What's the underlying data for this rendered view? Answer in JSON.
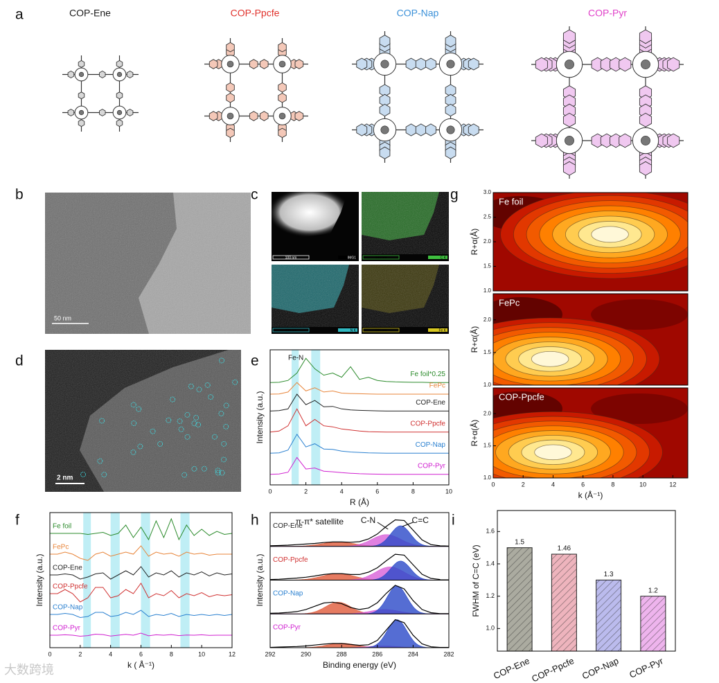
{
  "panels": [
    "a",
    "b",
    "c",
    "d",
    "e",
    "f",
    "g",
    "h",
    "i"
  ],
  "structures": [
    {
      "name": "COP-Ene",
      "color": "#1a1a1a",
      "fill": "#d8d8d8"
    },
    {
      "name": "COP-Ppcfe",
      "color": "#e0302a",
      "fill": "#f4c8b8"
    },
    {
      "name": "COP-Nap",
      "color": "#3a90d8",
      "fill": "#c8dcf0"
    },
    {
      "name": "COP-Pyr",
      "color": "#e040c8",
      "fill": "#f0c8f0"
    }
  ],
  "tem": {
    "scale_bar": "50 nm"
  },
  "mapping": {
    "tiles": [
      {
        "scale_bar": "100 nm",
        "label": "IMG1"
      },
      {
        "scale_bar": "100 nm",
        "label": "C K"
      },
      {
        "scale_bar": "100 nm",
        "label": "N K"
      },
      {
        "scale_bar": "100 nm",
        "label": "Fe K"
      }
    ]
  },
  "haadf": {
    "scale_bar": "2 nm"
  },
  "watermark": "大数跨境",
  "chart_data": [
    {
      "type": "line",
      "xlabel": "R (Å)",
      "ylabel": "Intensity (a.u.)",
      "annotation": "Fe-N",
      "x": [
        0,
        0.5,
        1,
        1.5,
        2,
        2.5,
        3,
        3.5,
        4,
        4.5,
        5,
        5.5,
        6,
        6.5,
        7,
        7.5,
        8,
        8.5,
        9,
        9.5,
        10
      ],
      "xlim": [
        0,
        10
      ],
      "xticks": [
        0,
        2,
        4,
        6,
        8,
        10
      ],
      "ylim": [
        0,
        6.4
      ],
      "bands": [
        [
          1.2,
          1.6
        ],
        [
          2.3,
          2.8
        ]
      ],
      "band_color": "#bfeef5",
      "series": [
        {
          "name": "Fe foil*0.25",
          "color": "#2a8a2a",
          "values": [
            4.85,
            4.86,
            4.95,
            5.3,
            6.0,
            5.5,
            5.2,
            5.3,
            5.1,
            5.6,
            5.0,
            5.1,
            4.95,
            4.9,
            4.88,
            4.87,
            4.86,
            4.86,
            4.85,
            4.85,
            4.85
          ]
        },
        {
          "name": "FePc",
          "color": "#e8853a",
          "values": [
            4.3,
            4.31,
            4.4,
            4.85,
            4.45,
            4.6,
            4.4,
            4.45,
            4.35,
            4.33,
            4.32,
            4.31,
            4.3,
            4.3,
            4.3,
            4.3,
            4.3,
            4.3,
            4.3,
            4.3,
            4.3
          ]
        },
        {
          "name": "COP-Ene",
          "color": "#222222",
          "values": [
            3.5,
            3.52,
            3.6,
            4.3,
            3.8,
            4.0,
            3.7,
            3.72,
            3.6,
            3.55,
            3.53,
            3.52,
            3.51,
            3.5,
            3.5,
            3.5,
            3.5,
            3.5,
            3.5,
            3.5,
            3.5
          ]
        },
        {
          "name": "COP-Ppcfe",
          "color": "#d03030",
          "values": [
            2.5,
            2.55,
            2.8,
            3.6,
            2.8,
            3.1,
            2.8,
            2.75,
            2.65,
            2.6,
            2.55,
            2.52,
            2.51,
            2.5,
            2.5,
            2.5,
            2.5,
            2.5,
            2.5,
            2.5,
            2.5
          ]
        },
        {
          "name": "COP-Nap",
          "color": "#2a80d0",
          "values": [
            1.5,
            1.52,
            1.65,
            2.4,
            1.8,
            1.95,
            1.7,
            1.68,
            1.6,
            1.56,
            1.54,
            1.52,
            1.51,
            1.5,
            1.5,
            1.5,
            1.5,
            1.5,
            1.5,
            1.5,
            1.5
          ]
        },
        {
          "name": "COP-Pyr",
          "color": "#d020d0",
          "values": [
            0.5,
            0.52,
            0.6,
            1.3,
            0.75,
            0.8,
            0.65,
            0.62,
            0.58,
            0.55,
            0.53,
            0.52,
            0.51,
            0.5,
            0.5,
            0.5,
            0.5,
            0.5,
            0.5,
            0.5,
            0.5
          ]
        }
      ]
    },
    {
      "type": "line",
      "xlabel": "k ( Å⁻¹)",
      "ylabel": "Intensity (a.u.)",
      "x": [
        0,
        0.5,
        1,
        1.5,
        2,
        2.5,
        3,
        3.5,
        4,
        4.5,
        5,
        5.5,
        6,
        6.5,
        7,
        7.5,
        8,
        8.5,
        9,
        9.5,
        10,
        10.5,
        11,
        11.5,
        12
      ],
      "xlim": [
        0,
        12
      ],
      "xticks": [
        0,
        2,
        4,
        6,
        8,
        10,
        12
      ],
      "ylim": [
        0,
        6.5
      ],
      "bands": [
        [
          2.2,
          2.7
        ],
        [
          4.0,
          4.6
        ],
        [
          6.0,
          6.6
        ],
        [
          8.6,
          9.2
        ]
      ],
      "band_color": "#bfeef5",
      "series": [
        {
          "name": "Fe foil",
          "color": "#2a8a2a",
          "values": [
            5.5,
            5.5,
            5.5,
            5.5,
            5.5,
            5.45,
            5.5,
            5.55,
            5.4,
            5.5,
            5.9,
            5.3,
            5.8,
            5.2,
            6.1,
            5.3,
            6.2,
            5.2,
            5.9,
            5.4,
            5.7,
            5.4,
            5.6,
            5.45,
            5.5
          ]
        },
        {
          "name": "FePc",
          "color": "#e8853a",
          "values": [
            4.5,
            4.5,
            4.6,
            4.5,
            4.3,
            4.2,
            4.5,
            4.6,
            4.4,
            4.5,
            4.6,
            4.5,
            4.9,
            4.4,
            4.6,
            4.5,
            4.55,
            4.4,
            4.6,
            4.5,
            4.55,
            4.45,
            4.5,
            4.5,
            4.5
          ]
        },
        {
          "name": "COP-Ene",
          "color": "#222222",
          "values": [
            3.5,
            3.5,
            3.55,
            3.5,
            3.3,
            3.4,
            3.55,
            3.6,
            3.3,
            3.5,
            3.7,
            3.5,
            3.9,
            3.4,
            3.6,
            3.5,
            3.7,
            3.4,
            3.6,
            3.5,
            3.65,
            3.45,
            3.6,
            3.5,
            3.55
          ]
        },
        {
          "name": "COP-Ppcfe",
          "color": "#d03030",
          "values": [
            2.6,
            2.6,
            2.8,
            2.6,
            2.2,
            2.4,
            2.9,
            2.9,
            2.4,
            2.5,
            2.8,
            2.6,
            3.1,
            2.4,
            2.6,
            2.5,
            2.75,
            2.4,
            2.6,
            2.5,
            2.65,
            2.45,
            2.55,
            2.5,
            2.55
          ]
        },
        {
          "name": "COP-Nap",
          "color": "#2a80d0",
          "values": [
            1.6,
            1.6,
            1.65,
            1.6,
            1.45,
            1.5,
            1.7,
            1.7,
            1.5,
            1.55,
            1.7,
            1.6,
            1.8,
            1.5,
            1.6,
            1.55,
            1.65,
            1.5,
            1.6,
            1.55,
            1.6,
            1.55,
            1.6,
            1.55,
            1.6
          ]
        },
        {
          "name": "COP-Pyr",
          "color": "#d020d0",
          "values": [
            0.6,
            0.6,
            0.62,
            0.6,
            0.55,
            0.58,
            0.65,
            0.63,
            0.56,
            0.6,
            0.64,
            0.6,
            0.7,
            0.57,
            0.62,
            0.6,
            0.63,
            0.58,
            0.61,
            0.6,
            0.62,
            0.59,
            0.6,
            0.6,
            0.6
          ]
        }
      ]
    },
    {
      "type": "contour",
      "title": "Fe foil",
      "ylabel": "R+α(Å)",
      "xlim": [
        0,
        13
      ],
      "ylim": [
        1,
        3
      ],
      "yticks": [
        {
          "value": 1,
          "label": "1.0"
        },
        1.5,
        {
          "value": 2,
          "label": "2.0"
        },
        2.5,
        {
          "value": 3,
          "label": "3.0"
        }
      ],
      "hotspot": {
        "k": 7.8,
        "r": 2.15
      }
    },
    {
      "type": "contour",
      "title": "FePc",
      "ylabel": "R+α(Å)",
      "xlim": [
        0,
        13
      ],
      "ylim": [
        1,
        2.4
      ],
      "yticks": [
        {
          "value": 1,
          "label": "1.0"
        },
        1.5,
        {
          "value": 2,
          "label": "2.0"
        }
      ],
      "hotspot": {
        "k": 3.8,
        "r": 1.4
      }
    },
    {
      "type": "contour",
      "title": "COP-Ppcfe",
      "ylabel": "R+α(Å)",
      "xlabel": "k (Å⁻¹)",
      "xlim": [
        0,
        13
      ],
      "ylim": [
        1,
        2.4
      ],
      "xticks": [
        0,
        2,
        4,
        6,
        8,
        10,
        12
      ],
      "yticks": [
        {
          "value": 1,
          "label": "1.0"
        },
        1.5,
        {
          "value": 2,
          "label": "2.0"
        }
      ],
      "hotspot": {
        "k": 4.0,
        "r": 1.4
      }
    },
    {
      "type": "peakfit",
      "xlabel": "Binding energy (eV)",
      "ylabel": "Intensity (a.u.)",
      "xlim": [
        292,
        282
      ],
      "xticks": [
        292,
        290,
        288,
        286,
        284,
        282
      ],
      "ylim": [
        0,
        1.1
      ],
      "x": [
        292,
        291.5,
        291,
        290.5,
        290,
        289.5,
        289,
        288.5,
        288,
        287.5,
        287,
        286.5,
        286,
        285.5,
        285,
        284.5,
        284,
        283.5,
        283,
        282.5,
        282
      ],
      "annotations": [
        "π-π* satellite",
        "C-N",
        "C=C"
      ],
      "peak_colors": [
        "#e05a3a",
        "#d860d8",
        "#2a48c8"
      ],
      "samples": [
        {
          "name": "COP-Ene",
          "color": "#222222",
          "envelope": [
            0.02,
            0.03,
            0.04,
            0.06,
            0.08,
            0.1,
            0.13,
            0.15,
            0.15,
            0.14,
            0.16,
            0.25,
            0.42,
            0.68,
            0.9,
            0.88,
            0.55,
            0.22,
            0.06,
            0.02,
            0.01
          ],
          "peaks": [
            {
              "center": 288.2,
              "height": 0.15,
              "width": 0.9
            },
            {
              "center": 285.5,
              "height": 0.4,
              "width": 0.8
            },
            {
              "center": 284.7,
              "height": 0.7,
              "width": 0.55
            }
          ]
        },
        {
          "name": "COP-Ppcfe",
          "color": "#d03030",
          "envelope": [
            0.02,
            0.03,
            0.05,
            0.07,
            0.1,
            0.14,
            0.19,
            0.22,
            0.22,
            0.19,
            0.19,
            0.27,
            0.42,
            0.66,
            0.88,
            0.85,
            0.52,
            0.2,
            0.06,
            0.02,
            0.01
          ],
          "peaks": [
            {
              "center": 288.2,
              "height": 0.22,
              "width": 0.9
            },
            {
              "center": 285.3,
              "height": 0.45,
              "width": 0.8
            },
            {
              "center": 284.7,
              "height": 0.65,
              "width": 0.55
            }
          ]
        },
        {
          "name": "COP-Nap",
          "color": "#2a80d0",
          "envelope": [
            0.02,
            0.03,
            0.05,
            0.08,
            0.15,
            0.26,
            0.37,
            0.4,
            0.35,
            0.22,
            0.15,
            0.2,
            0.38,
            0.7,
            0.97,
            0.85,
            0.45,
            0.15,
            0.04,
            0.01,
            0.01
          ],
          "peaks": [
            {
              "center": 288.2,
              "height": 0.4,
              "width": 0.7
            },
            {
              "center": 285.6,
              "height": 0.15,
              "width": 0.8
            },
            {
              "center": 284.9,
              "height": 0.95,
              "width": 0.55
            }
          ]
        },
        {
          "name": "COP-Pyr",
          "color": "#d020d0",
          "envelope": [
            0.01,
            0.02,
            0.03,
            0.04,
            0.06,
            0.09,
            0.12,
            0.14,
            0.14,
            0.11,
            0.08,
            0.1,
            0.25,
            0.6,
            0.95,
            0.85,
            0.42,
            0.13,
            0.03,
            0.01,
            0.01
          ],
          "peaks": [
            {
              "center": 288.0,
              "height": 0.15,
              "width": 0.8
            },
            {
              "center": 285.7,
              "height": 0.06,
              "width": 0.8
            },
            {
              "center": 284.9,
              "height": 0.95,
              "width": 0.55
            }
          ]
        }
      ]
    },
    {
      "type": "bar",
      "ylabel": "FWHM of C=C (eV)",
      "categories": [
        "COP-Ene",
        "COP-Ppcfe",
        "COP-Nap",
        "COP-Pyr"
      ],
      "values": [
        1.5,
        1.46,
        1.3,
        1.2
      ],
      "colors": [
        "#8f8f80",
        "#e89aa6",
        "#a4a4e6",
        "#e89ae6"
      ],
      "ylim": [
        0.86,
        1.73
      ],
      "yticks": [
        {
          "value": 1,
          "label": "1.0"
        },
        1.2,
        1.4,
        1.6
      ]
    }
  ]
}
